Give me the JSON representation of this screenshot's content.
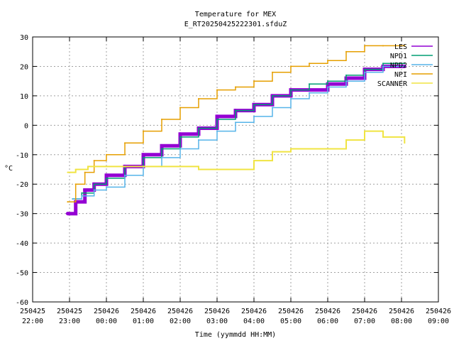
{
  "chart_data": {
    "type": "line",
    "title": "Temperature for MEX",
    "subtitle": "E_RT20250425222301.sfduZ",
    "xlabel": "Time (yymmdd HH:MM)",
    "ylabel": "°C",
    "ylim": [
      -60,
      30
    ],
    "xlim": [
      "2025-04-25 22:00",
      "2025-04-26 09:00"
    ],
    "grid": true,
    "legend_position": "top-right",
    "x_ticks": [
      {
        "date": "250425",
        "time": "22:00"
      },
      {
        "date": "250425",
        "time": "23:00"
      },
      {
        "date": "250426",
        "time": "00:00"
      },
      {
        "date": "250426",
        "time": "01:00"
      },
      {
        "date": "250426",
        "time": "02:00"
      },
      {
        "date": "250426",
        "time": "03:00"
      },
      {
        "date": "250426",
        "time": "04:00"
      },
      {
        "date": "250426",
        "time": "05:00"
      },
      {
        "date": "250426",
        "time": "06:00"
      },
      {
        "date": "250426",
        "time": "07:00"
      },
      {
        "date": "250426",
        "time": "08:00"
      },
      {
        "date": "250426",
        "time": "09:00"
      }
    ],
    "y_ticks": [
      "30",
      "20",
      "10",
      "0",
      "-10",
      "-20",
      "-30",
      "-40",
      "-50",
      "-60"
    ],
    "series": [
      {
        "name": "LES",
        "color": "#9400d3",
        "x": [
          "2025-04-25 22:57",
          "2025-04-25 23:10",
          "2025-04-25 23:25",
          "2025-04-25 23:40",
          "2025-04-26 00:00",
          "2025-04-26 00:30",
          "2025-04-26 01:00",
          "2025-04-26 01:30",
          "2025-04-26 02:00",
          "2025-04-26 02:30",
          "2025-04-26 03:00",
          "2025-04-26 03:30",
          "2025-04-26 04:00",
          "2025-04-26 04:30",
          "2025-04-26 05:00",
          "2025-04-26 05:30",
          "2025-04-26 06:00",
          "2025-04-26 06:30",
          "2025-04-26 07:00",
          "2025-04-26 07:30",
          "2025-04-26 08:05"
        ],
        "y": [
          -30,
          -26,
          -22,
          -20,
          -17,
          -14,
          -10,
          -7,
          -3,
          -1,
          3,
          5,
          7,
          10,
          12,
          12,
          14,
          16,
          19,
          20,
          20
        ]
      },
      {
        "name": "NPD1",
        "color": "#009e73",
        "x": [
          "2025-04-25 23:05",
          "2025-04-25 23:20",
          "2025-04-25 23:40",
          "2025-04-26 00:00",
          "2025-04-26 00:30",
          "2025-04-26 01:00",
          "2025-04-26 01:30",
          "2025-04-26 02:00",
          "2025-04-26 02:30",
          "2025-04-26 03:00",
          "2025-04-26 03:30",
          "2025-04-26 04:00",
          "2025-04-26 04:30",
          "2025-04-26 05:00",
          "2025-04-26 05:30",
          "2025-04-26 06:00",
          "2025-04-26 06:30",
          "2025-04-26 07:00",
          "2025-04-26 07:30",
          "2025-04-26 08:05"
        ],
        "y": [
          -25,
          -23,
          -20,
          -18,
          -14,
          -11,
          -8,
          -4,
          -1,
          2,
          5,
          7,
          10,
          12,
          14,
          15,
          17,
          19,
          21,
          21
        ]
      },
      {
        "name": "NPD2",
        "color": "#56b4e9",
        "x": [
          "2025-04-25 23:05",
          "2025-04-25 23:20",
          "2025-04-25 23:40",
          "2025-04-26 00:00",
          "2025-04-26 00:30",
          "2025-04-26 01:00",
          "2025-04-26 01:30",
          "2025-04-26 02:00",
          "2025-04-26 02:30",
          "2025-04-26 03:00",
          "2025-04-26 03:30",
          "2025-04-26 04:00",
          "2025-04-26 04:30",
          "2025-04-26 05:00",
          "2025-04-26 05:30",
          "2025-04-26 06:00",
          "2025-04-26 06:30",
          "2025-04-26 07:00",
          "2025-04-26 07:30",
          "2025-04-26 08:05"
        ],
        "y": [
          -25,
          -24,
          -22,
          -21,
          -17,
          -14,
          -11,
          -8,
          -5,
          -2,
          1,
          3,
          6,
          9,
          11,
          13,
          15,
          18,
          20,
          20
        ]
      },
      {
        "name": "NPI",
        "color": "#e69f00",
        "x": [
          "2025-04-25 22:57",
          "2025-04-25 23:10",
          "2025-04-25 23:25",
          "2025-04-25 23:40",
          "2025-04-26 00:00",
          "2025-04-26 00:30",
          "2025-04-26 01:00",
          "2025-04-26 01:30",
          "2025-04-26 02:00",
          "2025-04-26 02:30",
          "2025-04-26 03:00",
          "2025-04-26 03:30",
          "2025-04-26 04:00",
          "2025-04-26 04:30",
          "2025-04-26 05:00",
          "2025-04-26 05:30",
          "2025-04-26 06:00",
          "2025-04-26 06:30",
          "2025-04-26 07:00",
          "2025-04-26 07:30",
          "2025-04-26 08:05"
        ],
        "y": [
          -26,
          -20,
          -16,
          -12,
          -10,
          -6,
          -2,
          2,
          6,
          9,
          12,
          13,
          15,
          18,
          20,
          21,
          22,
          25,
          27,
          27,
          27
        ]
      },
      {
        "name": "SCANNER",
        "color": "#f0e442",
        "x": [
          "2025-04-25 22:57",
          "2025-04-25 23:10",
          "2025-04-25 23:30",
          "2025-04-26 00:00",
          "2025-04-26 00:30",
          "2025-04-26 01:00",
          "2025-04-26 01:30",
          "2025-04-26 02:00",
          "2025-04-26 02:30",
          "2025-04-26 03:00",
          "2025-04-26 03:30",
          "2025-04-26 03:50",
          "2025-04-26 04:00",
          "2025-04-26 04:30",
          "2025-04-26 05:00",
          "2025-04-26 05:30",
          "2025-04-26 06:00",
          "2025-04-26 06:30",
          "2025-04-26 07:00",
          "2025-04-26 07:30",
          "2025-04-26 08:05"
        ],
        "y": [
          -16,
          -15,
          -14,
          -14,
          -14,
          -14,
          -14,
          -14,
          -15,
          -15,
          -15,
          -15,
          -12,
          -9,
          -8,
          -8,
          -8,
          -5,
          -2,
          -4,
          -6
        ]
      }
    ]
  }
}
